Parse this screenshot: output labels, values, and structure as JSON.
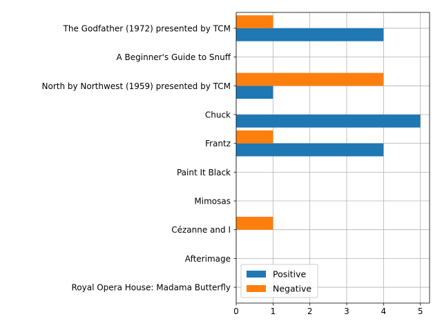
{
  "chart_data": {
    "type": "bar",
    "orientation": "horizontal",
    "categories": [
      "The Godfather (1972) presented by TCM",
      "A Beginner's Guide to Snuff",
      "North by Northwest (1959) presented by TCM",
      "Chuck",
      "Frantz",
      "Paint It Black",
      "Mimosas",
      "Cézanne and I",
      "Afterimage",
      "Royal Opera House: Madama Butterfly"
    ],
    "series": [
      {
        "name": "Positive",
        "color": "#1f77b4",
        "values": [
          4,
          0,
          1,
          5,
          4,
          0,
          0,
          0,
          0,
          0
        ]
      },
      {
        "name": "Negative",
        "color": "#ff7f0e",
        "values": [
          1,
          0,
          4,
          0,
          1,
          0,
          0,
          1,
          0,
          0
        ]
      }
    ],
    "xticks": [
      "0",
      "1",
      "2",
      "3",
      "4",
      "5"
    ],
    "xlim": [
      0,
      5.25
    ],
    "grid": true,
    "legend_position": "lower-left",
    "title": "",
    "xlabel": "",
    "ylabel": ""
  }
}
